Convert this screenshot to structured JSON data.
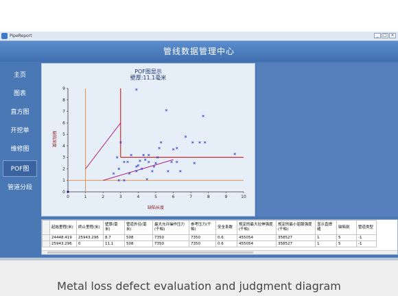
{
  "window": {
    "title": "PipeReport",
    "header_title": "管线数据管理中心",
    "controls": [
      "_",
      "□",
      "×"
    ]
  },
  "sidebar": {
    "items": [
      {
        "label": "主页"
      },
      {
        "label": "图表"
      },
      {
        "label": "直方图"
      },
      {
        "label": "开挖单"
      },
      {
        "label": "维修图"
      },
      {
        "label": "POF图",
        "active": true
      },
      {
        "label": "管道分段"
      }
    ]
  },
  "chart_data": {
    "type": "scatter",
    "title": "POF图显示",
    "subtitle": "壁厚:11.1毫米",
    "xlabel": "缺陷长度",
    "ylabel": "缺陷深度",
    "xlim": [
      0,
      10
    ],
    "ylim": [
      0,
      9
    ],
    "xticks": [
      "0",
      "1",
      "2",
      "3",
      "4",
      "5",
      "6",
      "7",
      "8",
      "9",
      "10"
    ],
    "yticks": [
      "0",
      "1",
      "2",
      "3",
      "4",
      "5",
      "6",
      "7",
      "8",
      "9"
    ],
    "grid": false,
    "points": [
      [
        0,
        0
      ],
      [
        3.9,
        8.9
      ],
      [
        5.6,
        7.1
      ],
      [
        7.7,
        6.6
      ],
      [
        6.7,
        4.8
      ],
      [
        7.1,
        4.3
      ],
      [
        7.5,
        4.3
      ],
      [
        7.8,
        4.3
      ],
      [
        5.3,
        4.3
      ],
      [
        3.0,
        4.3
      ],
      [
        5.2,
        3.8
      ],
      [
        6.2,
        3.8
      ],
      [
        6.0,
        3.7
      ],
      [
        9.5,
        3.3
      ],
      [
        4.3,
        3.2
      ],
      [
        3.6,
        3.2
      ],
      [
        4.6,
        3.2
      ],
      [
        5.1,
        3.0
      ],
      [
        2.8,
        3.0
      ],
      [
        3.2,
        2.6
      ],
      [
        3.4,
        2.6
      ],
      [
        4.1,
        2.7
      ],
      [
        4.4,
        2.8
      ],
      [
        4.6,
        2.6
      ],
      [
        5.9,
        2.6
      ],
      [
        6.2,
        2.6
      ],
      [
        7.2,
        2.5
      ],
      [
        3.9,
        2.2
      ],
      [
        4.9,
        2.2
      ],
      [
        2.9,
        2.0
      ],
      [
        4.2,
        2.0
      ],
      [
        3.5,
        1.6
      ],
      [
        4.8,
        1.8
      ],
      [
        6.4,
        1.8
      ],
      [
        2.6,
        1.6
      ],
      [
        4.5,
        1.1
      ],
      [
        2.9,
        1.0
      ],
      [
        3.2,
        1.0
      ],
      [
        3.9,
        1.8
      ],
      [
        5.0,
        2.5
      ],
      [
        4.0,
        2.3
      ],
      [
        5.7,
        1.8
      ]
    ],
    "lines": [
      {
        "color": "#b02080",
        "points": [
          [
            1,
            2
          ],
          [
            3,
            6
          ]
        ]
      },
      {
        "color": "#b02080",
        "points": [
          [
            2,
            1
          ],
          [
            6,
            2.8
          ]
        ]
      },
      {
        "color": "#cc0000",
        "points": [
          [
            3,
            9
          ],
          [
            3,
            3
          ]
        ]
      },
      {
        "color": "#cc0000",
        "points": [
          [
            3,
            3
          ],
          [
            10,
            3
          ]
        ]
      },
      {
        "color": "#e09050",
        "points": [
          [
            1,
            0
          ],
          [
            1,
            9
          ]
        ]
      },
      {
        "color": "#e09050",
        "points": [
          [
            0,
            1
          ],
          [
            10,
            1
          ]
        ]
      }
    ],
    "marker_color": "#2a3fd0"
  },
  "table": {
    "headers": [
      "起始里程(米)",
      "终止里程(米)",
      "壁厚(毫米)",
      "管道外径(毫米)",
      "最大允许操作压力(千帕)",
      "参考压力(千帕)",
      "安全系数",
      "规定的最大拉伸强度(千帕)",
      "规定的最小屈服强度(千帕)",
      "显示直焊缝",
      "缺陷别",
      "管道类型"
    ],
    "rows": [
      [
        "24448.419",
        "25943.296",
        "8.7",
        "508",
        "7350",
        "7350",
        "0.6",
        "455054",
        "358527",
        "1",
        "5",
        "-1"
      ],
      [
        "25943.296",
        "0",
        "11.1",
        "508",
        "7350",
        "7350",
        "0.6",
        "455054",
        "358527",
        "1",
        "5",
        "-1"
      ]
    ]
  },
  "caption": "Metal loss defect evaluation and judgment diagram"
}
